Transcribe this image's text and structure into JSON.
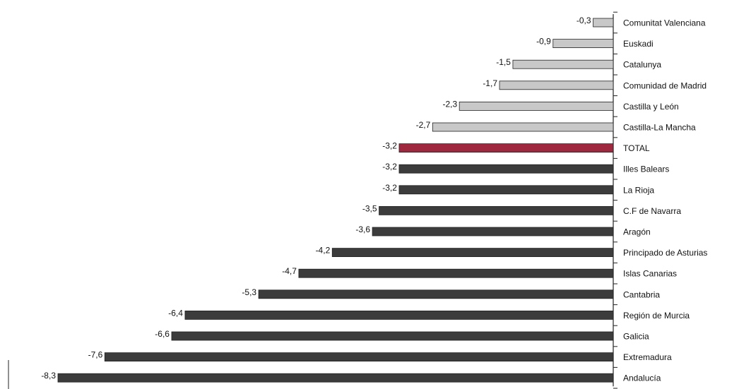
{
  "chart_data": {
    "type": "bar",
    "orientation": "horizontal",
    "title": "",
    "xlabel": "",
    "ylabel": "",
    "xlim": [
      -8.3,
      0
    ],
    "grid": false,
    "legend": "none",
    "categories": [
      "Comunitat Valenciana",
      "Euskadi",
      "Catalunya",
      "Comunidad de Madrid",
      "Castilla y León",
      "Castilla-La Mancha",
      "TOTAL",
      "Illes Balears",
      "La Rioja",
      "C.F de Navarra",
      "Aragón",
      "Principado de Asturias",
      "Islas Canarias",
      "Cantabria",
      "Región de Murcia",
      "Galicia",
      "Extremadura",
      "Andalucía"
    ],
    "values": [
      -0.3,
      -0.9,
      -1.5,
      -1.7,
      -2.3,
      -2.7,
      -3.2,
      -3.2,
      -3.2,
      -3.5,
      -3.6,
      -4.2,
      -4.7,
      -5.3,
      -6.4,
      -6.6,
      -7.6,
      -8.3
    ],
    "value_labels": [
      "-0,3",
      "-0,9",
      "-1,5",
      "-1,7",
      "-2,3",
      "-2,7",
      "-3,2",
      "-3,2",
      "-3,2",
      "-3,5",
      "-3,6",
      "-4,2",
      "-4,7",
      "-5,3",
      "-6,4",
      "-6,6",
      "-7,6",
      "-8,3"
    ],
    "colors": {
      "above_total": "#c8c8c8",
      "total": "#a0283e",
      "below_total": "#3c3c3c",
      "axis": "#222222"
    }
  }
}
